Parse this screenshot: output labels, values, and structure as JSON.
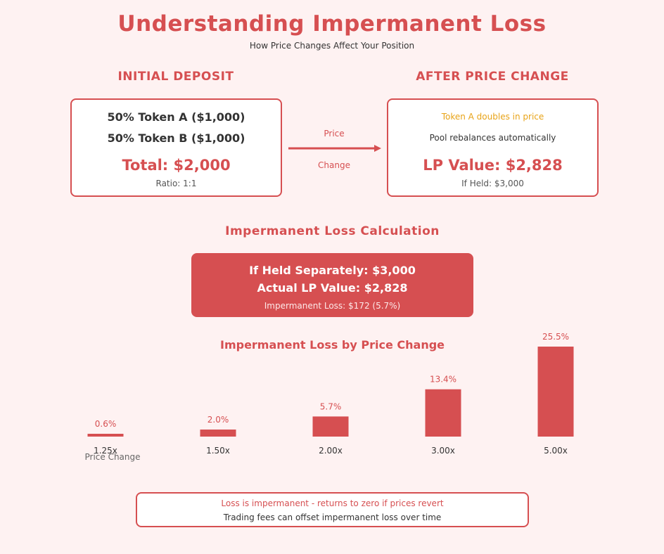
{
  "header": {
    "title": "Understanding Impermanent Loss",
    "subtitle": "How Price Changes Affect Your Position"
  },
  "initial": {
    "heading": "INITIAL DEPOSIT",
    "token_a": "50% Token A ($1,000)",
    "token_b": "50% Token B ($1,000)",
    "total": "Total: $2,000",
    "ratio": "Ratio: 1:1"
  },
  "arrow": {
    "label_top": "Price",
    "label_bottom": "Change"
  },
  "after": {
    "heading": "AFTER PRICE CHANGE",
    "event": "Token A doubles in price",
    "note": "Pool rebalances automatically",
    "lp_value": "LP Value: $2,828",
    "if_held": "If Held: $3,000"
  },
  "calculation": {
    "heading": "Impermanent Loss Calculation",
    "held": "If Held Separately: $3,000",
    "actual": "Actual LP Value: $2,828",
    "loss": "Impermanent Loss: $172 (5.7%)"
  },
  "chart_data": {
    "type": "bar",
    "title": "Impermanent Loss by Price Change",
    "categories": [
      "1.25x",
      "1.50x",
      "2.00x",
      "3.00x",
      "5.00x"
    ],
    "values": [
      0.6,
      2.0,
      5.7,
      13.4,
      25.5
    ],
    "value_labels": [
      "0.6%",
      "2.0%",
      "5.7%",
      "13.4%",
      "25.5%"
    ],
    "xlabel": "Price Change",
    "ylabel": "",
    "ylim": [
      0,
      25.5
    ],
    "grid": false,
    "bar_color": "#d64f51"
  },
  "notes": {
    "line1": "Loss is impermanent - returns to zero if prices revert",
    "line2": "Trading fees can offset impermanent loss over time"
  },
  "colors": {
    "accent": "#d64f51",
    "highlight": "#e8a317",
    "background": "#fef2f2"
  }
}
